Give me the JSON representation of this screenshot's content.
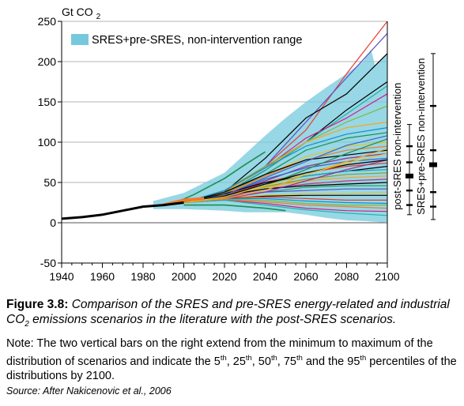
{
  "chart_data": {
    "type": "line",
    "ylabel": "Gt CO2",
    "x_ticks": [
      1940,
      1960,
      1980,
      2000,
      2020,
      2040,
      2060,
      2080,
      2100
    ],
    "y_ticks": [
      -50,
      0,
      50,
      100,
      150,
      200,
      250
    ],
    "xlim": [
      1940,
      2100
    ],
    "ylim": [
      -50,
      250
    ],
    "grid": "horizontal",
    "legend": {
      "position": "top-left",
      "entries": [
        {
          "name": "SRES+pre-SRES, non-intervention range",
          "color": "#76c9dc"
        }
      ]
    },
    "range_band": {
      "name": "SRES+pre-SRES, non-intervention range",
      "color": "#76c9dc",
      "upper": [
        [
          1985,
          27
        ],
        [
          2000,
          37
        ],
        [
          2020,
          62
        ],
        [
          2030,
          85
        ],
        [
          2040,
          108
        ],
        [
          2050,
          130
        ],
        [
          2060,
          150
        ],
        [
          2070,
          168
        ],
        [
          2080,
          185
        ],
        [
          2088,
          200
        ],
        [
          2092,
          215
        ],
        [
          2094,
          195
        ],
        [
          2100,
          210
        ]
      ],
      "lower": [
        [
          2100,
          0
        ],
        [
          2090,
          2
        ],
        [
          2080,
          3
        ],
        [
          2070,
          6
        ],
        [
          2060,
          10
        ],
        [
          2050,
          13
        ],
        [
          2040,
          13
        ],
        [
          2030,
          13
        ],
        [
          2020,
          15
        ],
        [
          2000,
          17
        ],
        [
          1985,
          17
        ]
      ]
    },
    "historical": {
      "color": "#000000",
      "x": [
        1940,
        1950,
        1960,
        1970,
        1980,
        1990,
        2000
      ],
      "y": [
        5,
        7,
        10,
        15,
        20,
        22,
        25
      ]
    },
    "series_years": [
      2000,
      2020,
      2040,
      2060,
      2080,
      2100
    ],
    "series": [
      {
        "color": "#e63d35",
        "values": [
          25,
          38,
          70,
          115,
          185,
          255
        ]
      },
      {
        "color": "#5a4fc4",
        "values": [
          25,
          40,
          70,
          125,
          180,
          235
        ]
      },
      {
        "color": "#000000",
        "values": [
          25,
          38,
          80,
          130,
          160,
          210
        ]
      },
      {
        "color": "#000000",
        "values": [
          25,
          36,
          65,
          100,
          140,
          175
        ]
      },
      {
        "color": "#1bb4a5",
        "values": [
          25,
          36,
          65,
          100,
          135,
          170
        ]
      },
      {
        "color": "#d61a8c",
        "values": [
          25,
          38,
          68,
          105,
          130,
          160
        ]
      },
      {
        "color": "#7ab83f",
        "values": [
          25,
          40,
          70,
          100,
          125,
          145
        ]
      },
      {
        "color": "#f5a623",
        "values": [
          25,
          38,
          68,
          100,
          118,
          125
        ]
      },
      {
        "color": "#0b8fd1",
        "values": [
          25,
          40,
          68,
          95,
          110,
          118
        ]
      },
      {
        "color": "#1a8f4f",
        "values": [
          25,
          36,
          60,
          90,
          105,
          112
        ]
      },
      {
        "color": "#e6c229",
        "values": [
          25,
          35,
          58,
          82,
          95,
          100
        ]
      },
      {
        "color": "#f07a2a",
        "values": [
          25,
          36,
          58,
          78,
          90,
          95
        ]
      },
      {
        "color": "#000000",
        "values": [
          25,
          38,
          60,
          78,
          84,
          90
        ]
      },
      {
        "color": "#9c2b8c",
        "values": [
          25,
          34,
          52,
          70,
          80,
          86
        ]
      },
      {
        "color": "#3a62c9",
        "values": [
          25,
          34,
          54,
          68,
          76,
          80
        ]
      },
      {
        "color": "#e63d35",
        "values": [
          25,
          33,
          50,
          62,
          70,
          74
        ]
      },
      {
        "color": "#000000",
        "values": [
          25,
          36,
          50,
          58,
          64,
          70
        ]
      },
      {
        "color": "#18a6c4",
        "values": [
          25,
          33,
          48,
          58,
          64,
          66
        ]
      },
      {
        "color": "#8a9a1e",
        "values": [
          25,
          32,
          45,
          54,
          60,
          62
        ]
      },
      {
        "color": "#f5a623",
        "values": [
          25,
          34,
          44,
          52,
          56,
          58
        ]
      },
      {
        "color": "#c7327a",
        "values": [
          25,
          32,
          42,
          48,
          52,
          54
        ]
      },
      {
        "color": "#000000",
        "values": [
          25,
          34,
          42,
          46,
          48,
          50
        ]
      },
      {
        "color": "#2a9d5a",
        "values": [
          25,
          31,
          38,
          44,
          46,
          46
        ]
      },
      {
        "color": "#5a4fc4",
        "values": [
          25,
          32,
          38,
          40,
          42,
          42
        ]
      },
      {
        "color": "#e6c229",
        "values": [
          25,
          30,
          34,
          36,
          36,
          38
        ]
      },
      {
        "color": "#000000",
        "values": [
          25,
          30,
          33,
          34,
          34,
          34
        ]
      },
      {
        "color": "#e63d35",
        "values": [
          25,
          31,
          32,
          30,
          28,
          28
        ]
      },
      {
        "color": "#0b8fd1",
        "values": [
          25,
          30,
          30,
          27,
          25,
          24
        ]
      },
      {
        "color": "#7ab83f",
        "values": [
          25,
          29,
          28,
          24,
          22,
          22
        ]
      },
      {
        "color": "#f07a2a",
        "values": [
          25,
          29,
          26,
          22,
          20,
          18
        ]
      },
      {
        "color": "#d61a8c",
        "values": [
          25,
          28,
          24,
          18,
          15,
          14
        ]
      },
      {
        "color": "#1bb4a5",
        "values": [
          25,
          28,
          22,
          16,
          12,
          9
        ]
      },
      {
        "color": "#9c2b8c",
        "values": [
          25,
          30,
          38,
          52,
          66,
          78
        ]
      },
      {
        "color": "#1a8f4f",
        "values": [
          25,
          32,
          46,
          66,
          86,
          104
        ]
      },
      {
        "color": "#f5a623",
        "values": [
          25,
          30,
          40,
          60,
          76,
          92
        ]
      },
      {
        "color": "#3a62c9",
        "values": [
          25,
          34,
          56,
          76,
          96,
          108
        ]
      },
      {
        "color": "#000000",
        "values": [
          25,
          33,
          48,
          62,
          72,
          78
        ]
      },
      {
        "color": "#e6c229",
        "values": [
          25,
          32,
          46,
          60,
          74,
          86
        ]
      }
    ],
    "extra_lines": [
      {
        "color": "#1a8f4f",
        "x": [
          2000,
          2020,
          2040,
          2050
        ],
        "y": [
          22,
          22,
          18,
          15
        ]
      },
      {
        "color": "#1a8f4f",
        "x": [
          1995,
          2005,
          2020,
          2030,
          2040
        ],
        "y": [
          24,
          35,
          55,
          72,
          88
        ]
      }
    ],
    "range_bars": [
      {
        "label": "post-SRES non-intervention",
        "min": 10,
        "p5": 22,
        "p25": 40,
        "p50": 58,
        "p75": 75,
        "p95": 95,
        "max": 122
      },
      {
        "label": "SRES+pre-SRES non-intervention",
        "min": 4,
        "p5": 20,
        "p25": 38,
        "p50": 72,
        "p75": 90,
        "p95": 145,
        "max": 210
      }
    ]
  },
  "caption": {
    "figure_label": "Figure 3.8:",
    "text_1": "Comparison of the SRES and pre-SRES energy-related and industrial CO",
    "text_sub": "2",
    "text_2": " emissions scenarios in the literature with the post-SRES scenarios."
  },
  "note": {
    "t1": "Note: The two vertical bars on the right extend from the minimum to maximum of the distribution of scenarios and indicate the 5",
    "s1": "th",
    "t2": ", 25",
    "s2": "th",
    "t3": ", 50",
    "s3": "th",
    "t4": ", 75",
    "s4": "th",
    "t5": " and the 95",
    "s5": "th",
    "t6": " percentiles of the distributions by 2100."
  },
  "source": "Source: After Nakicenovic et al., 2006"
}
